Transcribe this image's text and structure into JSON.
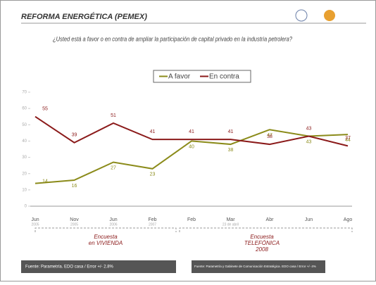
{
  "header": {
    "title": "REFORMA ENERGÉTICA (PEMEX)"
  },
  "chart_data": {
    "type": "line",
    "title": "¿Usted está a favor o en contra de ampliar la participación de capital privado en la industria petrolera?",
    "categories": [
      "Jun",
      "Nov",
      "Jun",
      "Feb",
      "Feb",
      "Mar",
      "Abr",
      "Jun",
      "Ago"
    ],
    "category_sublabels": [
      "2005",
      "2005",
      "2006",
      "2007",
      null,
      "23 de abril",
      null,
      null,
      null
    ],
    "series": [
      {
        "name": "A favor",
        "color": "#8b8b1a",
        "values": [
          14,
          16,
          27,
          23,
          40,
          38,
          47,
          43,
          44
        ]
      },
      {
        "name": "En contra",
        "color": "#8b1a1a",
        "values": [
          55,
          39,
          51,
          41,
          41,
          41,
          38,
          43,
          37
        ]
      }
    ],
    "ylim": [
      0,
      70
    ],
    "yticks": [
      0,
      10,
      20,
      30,
      40,
      50,
      60,
      70
    ],
    "legend": "top",
    "annotations": [
      "Encuesta",
      "en VIVIENDA",
      "Encuesta",
      "TELEFÓNICA",
      "2008"
    ]
  },
  "footer": [
    "Fuente: Parametría. EDO casa / Error +/- 2.8%",
    "Fuente: Parametría y Gabinete de Comunicación Estratégica. EDO casa / Error +/- 4%"
  ]
}
